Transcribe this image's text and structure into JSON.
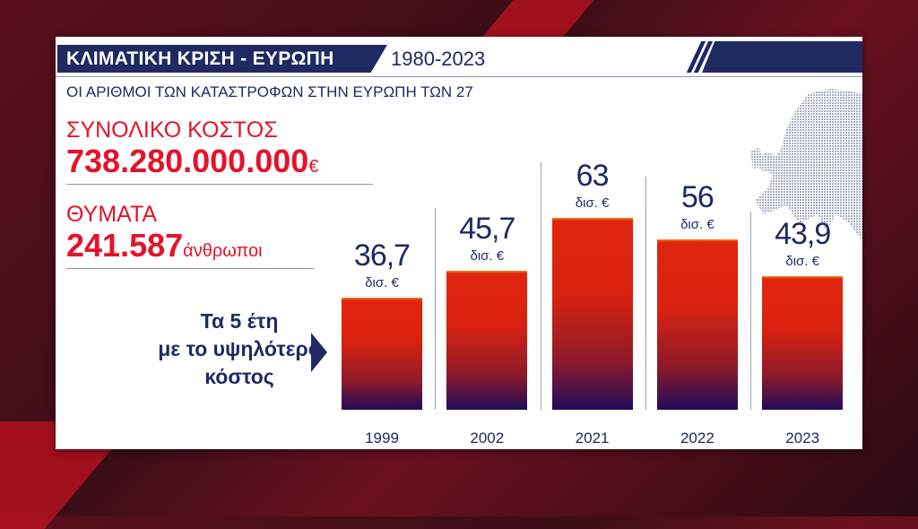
{
  "header": {
    "title": "ΚΛΙΜΑΤΙΚΗ ΚΡΙΣΗ - ΕΥΡΩΠΗ",
    "period": "1980-2023",
    "subtitle": "ΟΙ ΑΡΙΘΜΟΙ ΤΩΝ ΚΑΤΑΣΤΡΟΦΩΝ ΣΤΗΝ ΕΥΡΩΠΗ ΤΩΝ 27"
  },
  "stats": {
    "cost_label": "ΣΥΝΟΛΙΚΟ ΚΟΣΤΟΣ",
    "cost_value": "738.280.000.000",
    "cost_unit": "€",
    "victims_label": "ΘΥΜΑΤΑ",
    "victims_value": "241.587",
    "victims_unit": "άνθρωποι"
  },
  "note": {
    "line1": "Τα 5 έτη",
    "line2": "με το υψηλότερο",
    "line3": "κόστος"
  },
  "colors": {
    "navy": "#1f2a63",
    "red": "#e3132b"
  },
  "chart_data": {
    "type": "bar",
    "categories": [
      "1999",
      "2002",
      "2021",
      "2022",
      "2023"
    ],
    "values": [
      36.7,
      45.7,
      63,
      56,
      43.9
    ],
    "value_labels": [
      "36,7",
      "45,7",
      "63",
      "56",
      "43,9"
    ],
    "unit_label": "δισ. €",
    "title": "",
    "xlabel": "",
    "ylabel": "",
    "ylim": [
      0,
      63
    ],
    "grid": false,
    "legend": "none"
  }
}
